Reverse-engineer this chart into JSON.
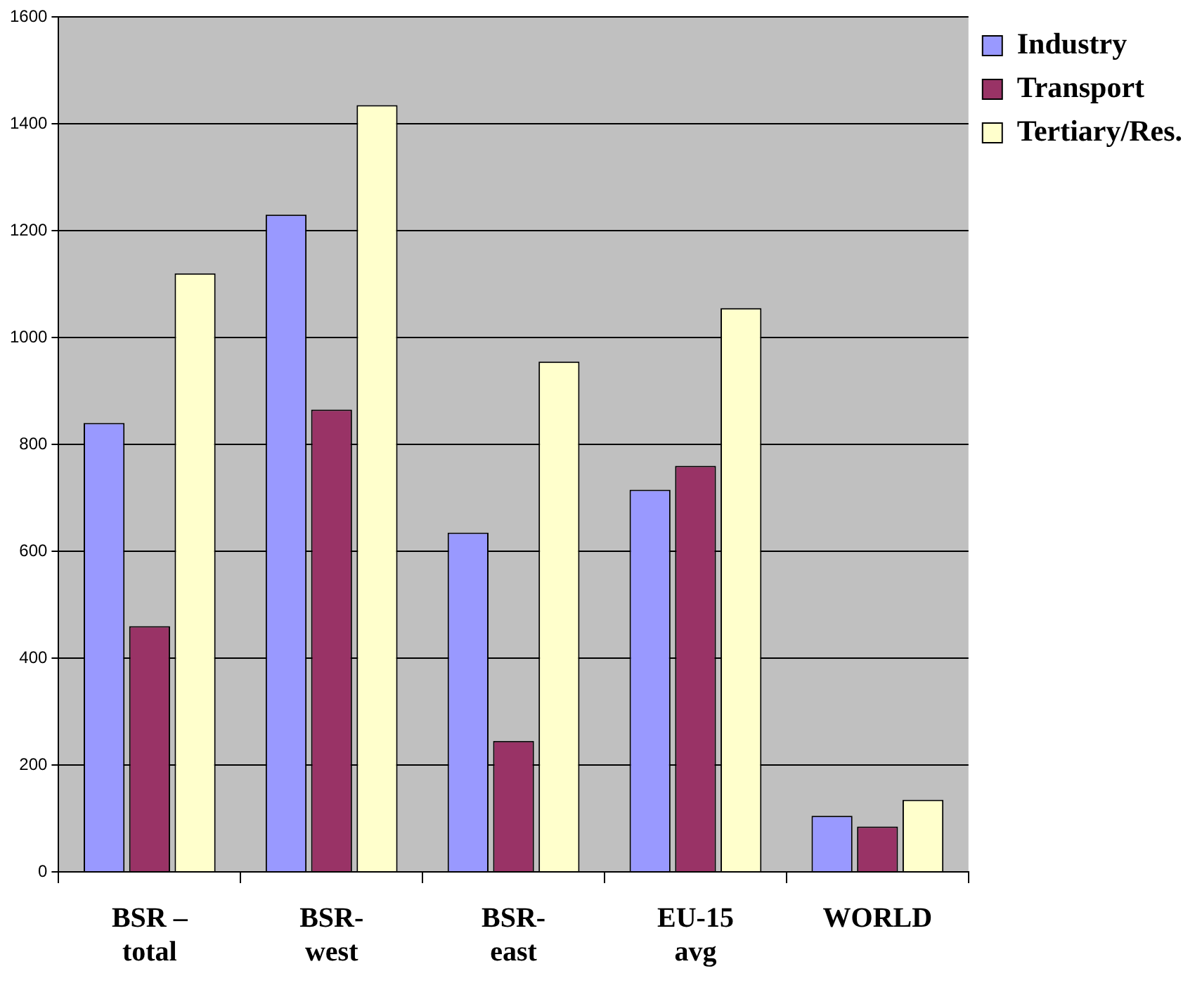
{
  "chart_data": {
    "type": "bar",
    "categories": [
      "BSR – total",
      "BSR- west",
      "BSR- east",
      "EU-15 avg",
      "WORLD"
    ],
    "series": [
      {
        "name": "Industry",
        "color": "#9999ff",
        "values": [
          840,
          1230,
          635,
          715,
          105
        ]
      },
      {
        "name": "Transport",
        "color": "#993366",
        "values": [
          460,
          865,
          245,
          760,
          85
        ]
      },
      {
        "name": "Tertiary/Res.",
        "color": "#ffffcc",
        "values": [
          1120,
          1435,
          955,
          1055,
          135
        ]
      }
    ],
    "ylim": [
      0,
      1600
    ],
    "yticks": [
      0,
      200,
      400,
      600,
      800,
      1000,
      1200,
      1400,
      1600
    ],
    "grid": "y",
    "legend": "right"
  }
}
